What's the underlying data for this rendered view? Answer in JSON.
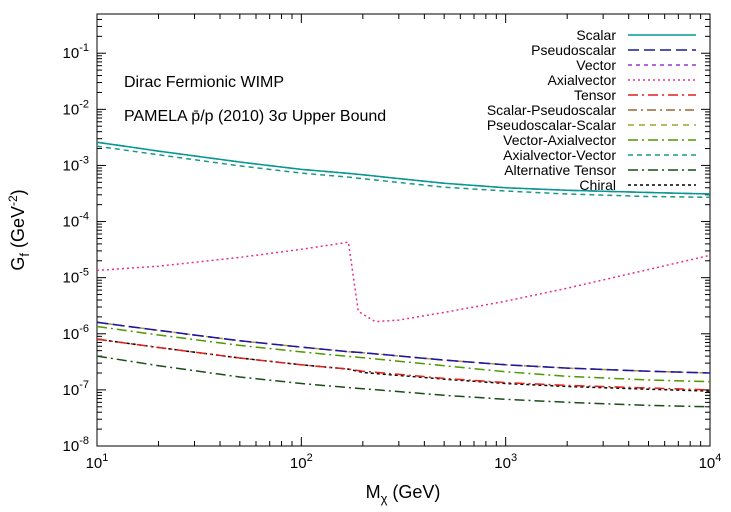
{
  "chart_data": {
    "type": "line",
    "x_scale": "log",
    "y_scale": "log",
    "xlim": [
      10,
      10000
    ],
    "ylim": [
      1e-08,
      0.5
    ],
    "grid": false,
    "legend_position": "top-right",
    "xlabel": {
      "base": "M",
      "sub": "χ",
      "unit": " (GeV)"
    },
    "ylabel": {
      "base": "G",
      "sub": "f",
      "unit_pre": " (GeV",
      "unit_sup": "-2",
      "unit_post": ")"
    },
    "x_ticks": [
      {
        "value": 10,
        "base": "10",
        "exp": "1"
      },
      {
        "value": 100,
        "base": "10",
        "exp": "2"
      },
      {
        "value": 1000,
        "base": "10",
        "exp": "3"
      },
      {
        "value": 10000,
        "base": "10",
        "exp": "4"
      }
    ],
    "y_ticks": [
      {
        "value": 1e-08,
        "base": "10",
        "exp": "-8"
      },
      {
        "value": 1e-07,
        "base": "10",
        "exp": "-7"
      },
      {
        "value": 1e-06,
        "base": "10",
        "exp": "-6"
      },
      {
        "value": 1e-05,
        "base": "10",
        "exp": "-5"
      },
      {
        "value": 0.0001,
        "base": "10",
        "exp": "-4"
      },
      {
        "value": 0.001,
        "base": "10",
        "exp": "-3"
      },
      {
        "value": 0.01,
        "base": "10",
        "exp": "-2"
      },
      {
        "value": 0.1,
        "base": "10",
        "exp": "-1"
      }
    ],
    "annotations": [
      {
        "text": "Dirac Fermionic WIMP"
      },
      {
        "text": "PAMELA p̄/p (2010) 3σ Upper Bound"
      }
    ],
    "series": [
      {
        "name": "Scalar",
        "color": "#009999",
        "dash": "",
        "x": [
          10,
          20,
          50,
          100,
          170,
          200,
          500,
          1000,
          2000,
          5000,
          10000
        ],
        "y": [
          0.0026,
          0.0018,
          0.00115,
          0.00085,
          0.00072,
          0.00068,
          0.00048,
          0.0004,
          0.00036,
          0.00033,
          0.00031
        ]
      },
      {
        "name": "Pseudoscalar",
        "color": "#1a1a99",
        "dash": "11,5",
        "x": [
          10,
          20,
          50,
          100,
          170,
          200,
          500,
          1000,
          2000,
          5000,
          10000
        ],
        "y": [
          1.6e-06,
          1.15e-06,
          7.5e-07,
          5.8e-07,
          4.8e-07,
          4.6e-07,
          3.4e-07,
          2.8e-07,
          2.45e-07,
          2.15e-07,
          2e-07
        ]
      },
      {
        "name": "Vector",
        "color": "#9933cc",
        "dash": "4,4",
        "x": [
          10,
          20,
          50,
          100,
          170,
          200,
          500,
          1000,
          2000,
          5000,
          10000
        ],
        "y": [
          1.6e-06,
          1.15e-06,
          7.5e-07,
          5.8e-07,
          4.8e-07,
          4.6e-07,
          3.4e-07,
          2.8e-07,
          2.45e-07,
          2.15e-07,
          2e-07
        ]
      },
      {
        "name": "Axialvector",
        "color": "#e6308a",
        "dash": "2,3",
        "x": [
          10,
          20,
          50,
          100,
          150,
          170,
          180,
          190,
          230,
          300,
          500,
          1000,
          2000,
          5000,
          10000
        ],
        "y": [
          1.35e-05,
          1.6e-05,
          2.3e-05,
          3.2e-05,
          4e-05,
          4.3e-05,
          1e-05,
          2.5e-06,
          1.65e-06,
          1.75e-06,
          2.4e-06,
          3.8e-06,
          6.5e-06,
          1.4e-05,
          2.5e-05
        ]
      },
      {
        "name": "Tensor",
        "color": "#e0201a",
        "dash": "10,4,2,4",
        "x": [
          10,
          20,
          50,
          100,
          170,
          200,
          500,
          1000,
          2000,
          5000,
          10000
        ],
        "y": [
          8e-07,
          5.7e-07,
          3.7e-07,
          2.8e-07,
          2.35e-07,
          2.15e-07,
          1.6e-07,
          1.35e-07,
          1.2e-07,
          1.08e-07,
          1e-07
        ]
      },
      {
        "name": "Scalar-Pseudoscalar",
        "color": "#996633",
        "dash": "9,4,2,4",
        "x": [
          10,
          20,
          50,
          100,
          170,
          200,
          500,
          1000,
          2000,
          5000,
          10000
        ],
        "y": [
          0.0026,
          0.0018,
          0.00115,
          0.00085,
          0.00072,
          0.00068,
          0.00048,
          0.0004,
          0.00036,
          0.00033,
          0.00031
        ]
      },
      {
        "name": "Pseudoscalar-Scalar",
        "color": "#a0a033",
        "dash": "6,5",
        "x": [
          10,
          20,
          50,
          100,
          170,
          200,
          500,
          1000,
          2000,
          5000,
          10000
        ],
        "y": [
          1.6e-06,
          1.15e-06,
          7.5e-07,
          5.8e-07,
          4.8e-07,
          4.6e-07,
          3.4e-07,
          2.8e-07,
          2.45e-07,
          2.15e-07,
          2e-07
        ]
      },
      {
        "name": "Vector-Axialvector",
        "color": "#4d9900",
        "dash": "10,4,2,4",
        "x": [
          10,
          20,
          50,
          100,
          170,
          200,
          500,
          1000,
          2000,
          5000,
          10000
        ],
        "y": [
          1.35e-06,
          9.5e-07,
          6.2e-07,
          4.75e-07,
          3.95e-07,
          3.75e-07,
          2.7e-07,
          2.1e-07,
          1.75e-07,
          1.5e-07,
          1.4e-07
        ]
      },
      {
        "name": "Axialvector-Vector",
        "color": "#1a9980",
        "dash": "5,4",
        "x": [
          10,
          20,
          50,
          100,
          170,
          200,
          500,
          1000,
          2000,
          5000,
          10000
        ],
        "y": [
          0.0022,
          0.00155,
          0.00098,
          0.00073,
          0.00062,
          0.00058,
          0.00041,
          0.00035,
          0.00031,
          0.00028,
          0.00027
        ]
      },
      {
        "name": "Alternative Tensor",
        "color": "#1a4d1a",
        "dash": "10,4,2,4",
        "x": [
          10,
          20,
          50,
          100,
          170,
          200,
          500,
          1000,
          2000,
          5000,
          10000
        ],
        "y": [
          4e-07,
          2.7e-07,
          1.7e-07,
          1.3e-07,
          1.1e-07,
          1.05e-07,
          8e-08,
          6.8e-08,
          6e-08,
          5.3e-08,
          5e-08
        ]
      },
      {
        "name": "Chiral",
        "color": "#000000",
        "dash": "3,3",
        "x": [
          10,
          20,
          50,
          100,
          170,
          200,
          500,
          1000,
          2000,
          5000,
          10000
        ],
        "y": [
          8e-07,
          5.7e-07,
          3.7e-07,
          2.8e-07,
          2.35e-07,
          2.05e-07,
          1.55e-07,
          1.3e-07,
          1.15e-07,
          1.03e-07,
          9.5e-08
        ]
      }
    ]
  }
}
